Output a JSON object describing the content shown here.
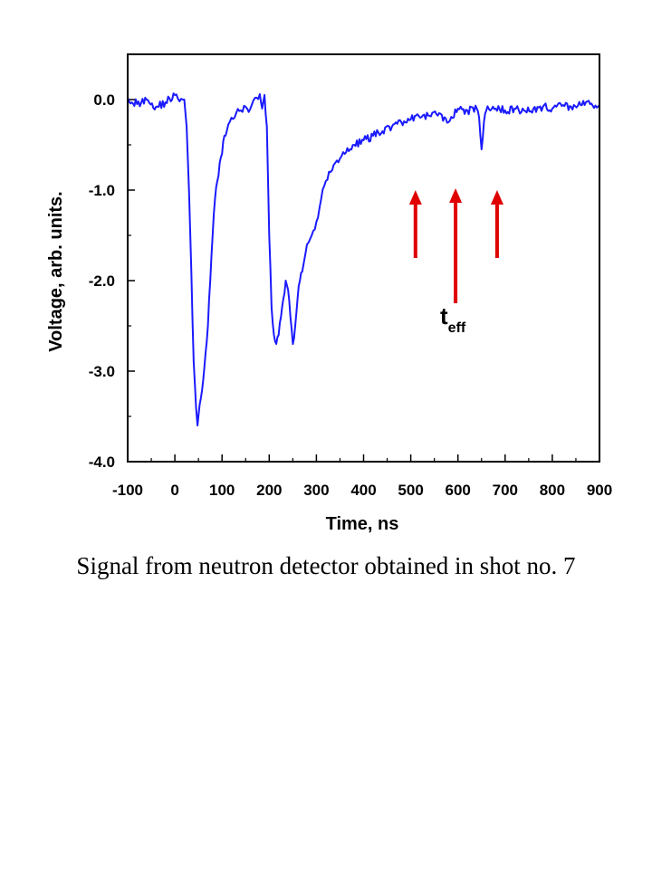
{
  "caption": "Signal from neutron detector obtained in shot no. 7",
  "chart_data": {
    "type": "line",
    "xlabel": "Time, ns",
    "ylabel": "Voltage, arb. units.",
    "xlim": [
      -100,
      900
    ],
    "ylim": [
      -4.0,
      0.5
    ],
    "x_ticks": [
      "-100",
      "0",
      "100",
      "200",
      "300",
      "400",
      "500",
      "600",
      "700",
      "800",
      "900"
    ],
    "y_ticks": [
      "0.0",
      "-1.0",
      "-2.0",
      "-3.0",
      "-4.0"
    ],
    "grid": false,
    "series": [
      {
        "color": "#1a1aff",
        "x": [
          -100,
          -80,
          -60,
          -40,
          -20,
          0,
          10,
          20,
          25,
          30,
          35,
          40,
          45,
          48,
          50,
          55,
          60,
          65,
          70,
          75,
          80,
          85,
          90,
          95,
          100,
          105,
          110,
          120,
          130,
          140,
          150,
          160,
          170,
          180,
          185,
          190,
          195,
          200,
          205,
          210,
          215,
          220,
          225,
          230,
          235,
          240,
          245,
          250,
          255,
          260,
          265,
          270,
          280,
          290,
          300,
          310,
          320,
          330,
          340,
          350,
          360,
          380,
          400,
          420,
          440,
          460,
          480,
          500,
          520,
          540,
          560,
          580,
          600,
          620,
          640,
          645,
          650,
          655,
          660,
          680,
          700,
          720,
          740,
          760,
          780,
          800,
          820,
          840,
          860,
          880,
          900
        ],
        "y": [
          0.02,
          -0.05,
          0.0,
          -0.08,
          -0.03,
          0.05,
          -0.02,
          0.0,
          -0.3,
          -1.0,
          -1.9,
          -2.9,
          -3.4,
          -3.6,
          -3.5,
          -3.3,
          -3.1,
          -2.8,
          -2.5,
          -2.0,
          -1.5,
          -1.1,
          -0.9,
          -0.7,
          -0.6,
          -0.4,
          -0.35,
          -0.2,
          -0.15,
          -0.12,
          -0.08,
          -0.1,
          0.02,
          0.06,
          -0.1,
          0.05,
          -0.3,
          -1.5,
          -2.3,
          -2.6,
          -2.7,
          -2.6,
          -2.4,
          -2.2,
          -2.0,
          -2.1,
          -2.4,
          -2.7,
          -2.5,
          -2.2,
          -2.0,
          -1.9,
          -1.6,
          -1.5,
          -1.35,
          -1.1,
          -0.9,
          -0.8,
          -0.7,
          -0.65,
          -0.6,
          -0.5,
          -0.45,
          -0.4,
          -0.35,
          -0.3,
          -0.25,
          -0.22,
          -0.2,
          -0.18,
          -0.15,
          -0.25,
          -0.1,
          -0.12,
          -0.1,
          -0.2,
          -0.55,
          -0.25,
          -0.12,
          -0.1,
          -0.12,
          -0.1,
          -0.12,
          -0.1,
          -0.08,
          -0.1,
          -0.07,
          -0.08,
          -0.06,
          -0.05,
          -0.06
        ]
      }
    ],
    "annotations": {
      "label_main": "t",
      "label_sub": "eff",
      "arrow_color": "#e00000",
      "arrows": [
        {
          "x": 510,
          "y_start": -1.75,
          "y_end": -1.0
        },
        {
          "x": 595,
          "y_start": -2.25,
          "y_end": -0.98
        },
        {
          "x": 683,
          "y_start": -1.75,
          "y_end": -1.0
        }
      ]
    }
  }
}
